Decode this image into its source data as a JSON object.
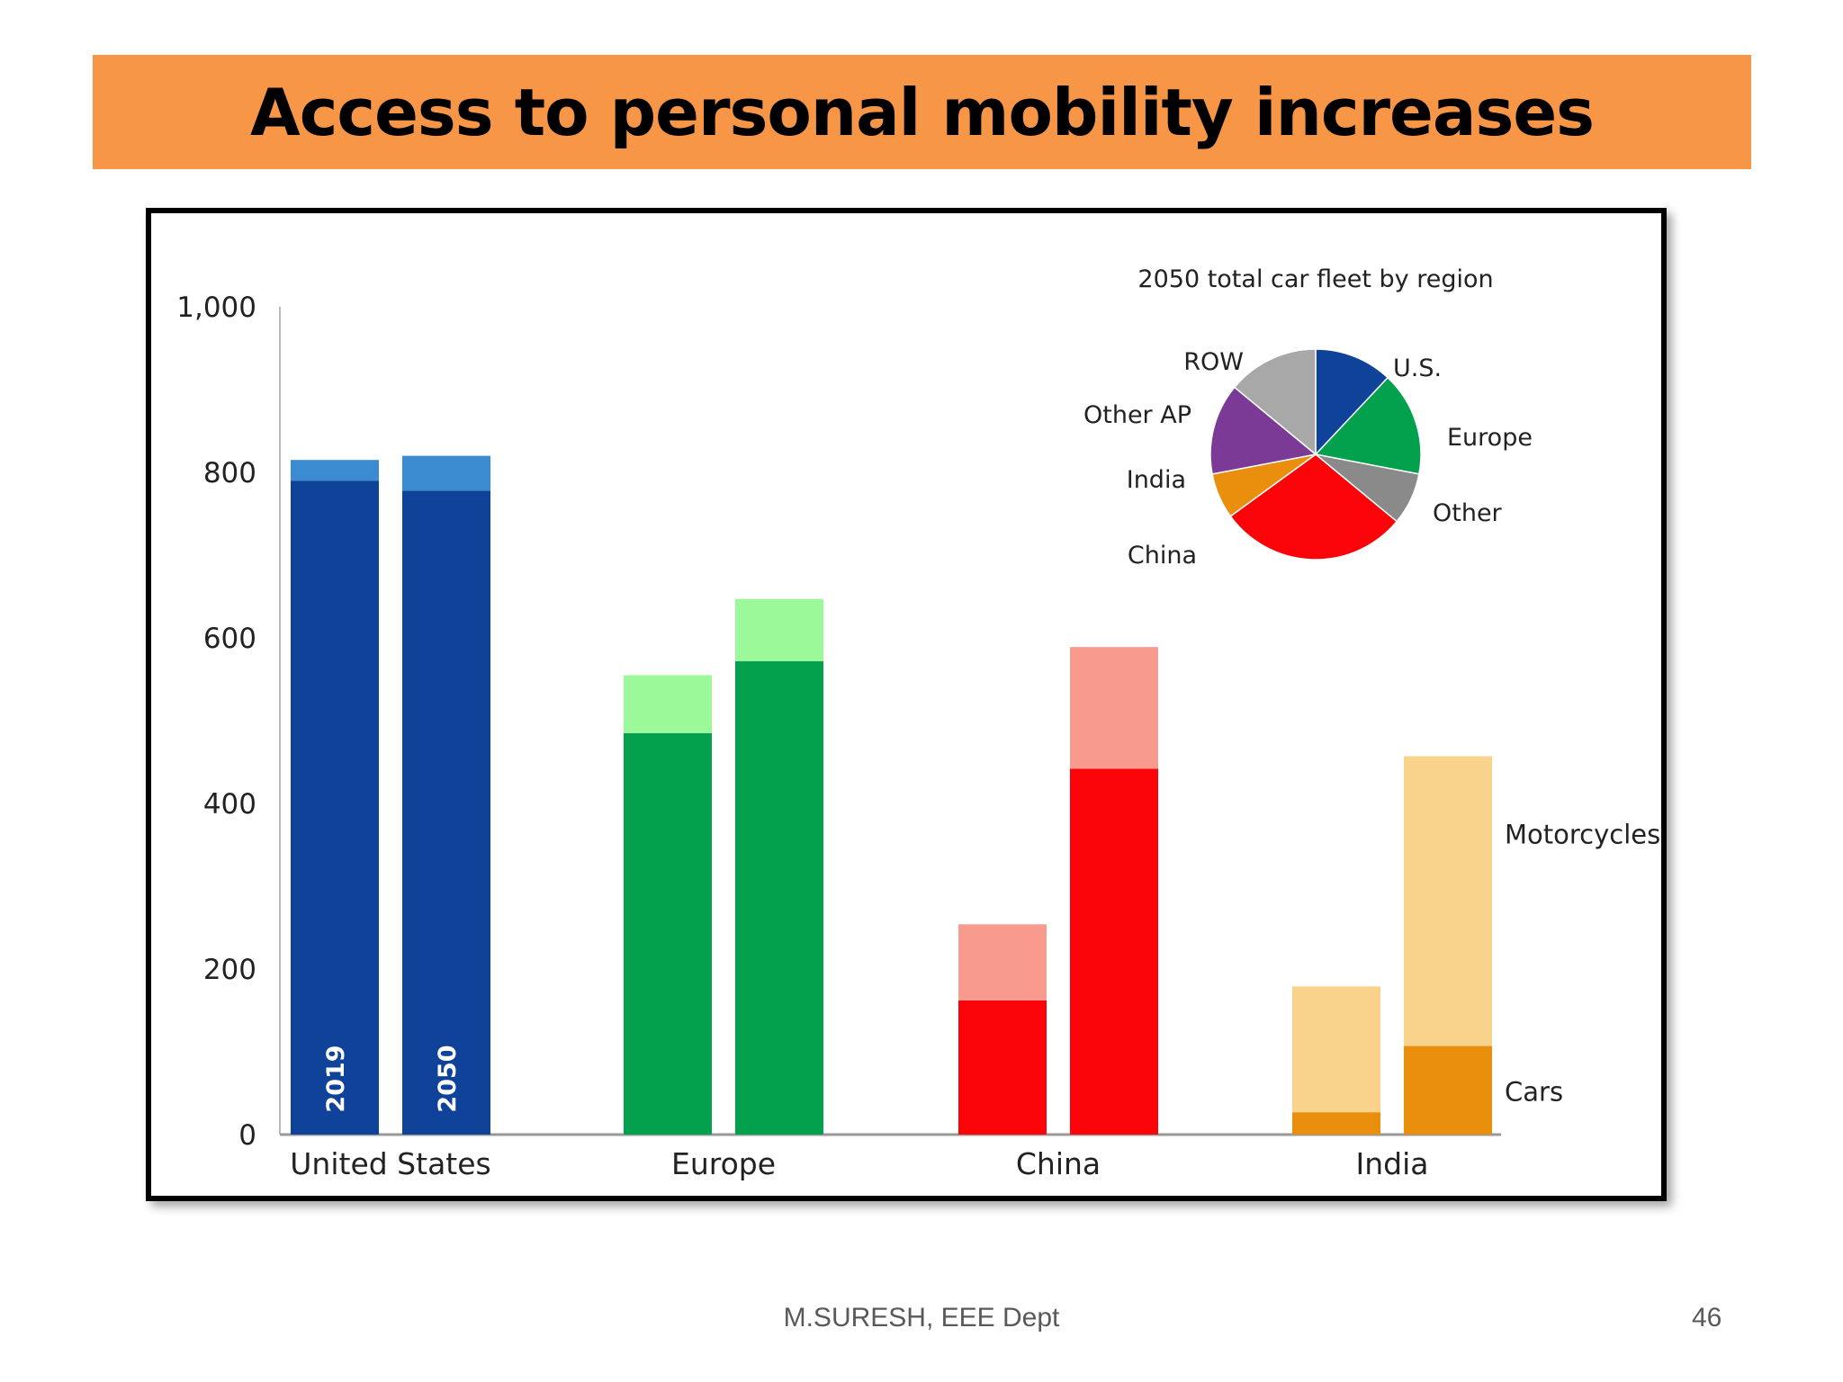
{
  "title": "Access to personal mobility increases",
  "footer": {
    "author": "M.SURESH, EEE Dept",
    "page": "46"
  },
  "chart_data": [
    {
      "type": "bar",
      "subtype": "stacked-grouped",
      "title": "",
      "ylim": [
        0,
        1000
      ],
      "yticks": [
        0,
        200,
        400,
        600,
        800,
        1000
      ],
      "ytick_labels": [
        "0",
        "200",
        "400",
        "600",
        "800",
        "1,000"
      ],
      "categories": [
        "United States",
        "Europe",
        "China",
        "India"
      ],
      "years": [
        "2019",
        "2050"
      ],
      "series": [
        {
          "name": "Cars",
          "label": "Cars",
          "values_2019": [
            790,
            485,
            162,
            27
          ],
          "values_2050": [
            778,
            572,
            442,
            107
          ]
        },
        {
          "name": "Motorcycles",
          "label": "Motorcycles",
          "values_2019": [
            25,
            70,
            92,
            152
          ],
          "values_2050": [
            42,
            75,
            147,
            350
          ]
        }
      ],
      "colors": {
        "United States": {
          "Cars": "#0f4299",
          "Motorcycles": "#3b8bd0"
        },
        "Europe": {
          "Cars": "#03a04d",
          "Motorcycles": "#9cf99a"
        },
        "China": {
          "Cars": "#fa0309",
          "Motorcycles": "#f99a8f"
        },
        "India": {
          "Cars": "#ea8e0e",
          "Motorcycles": "#f9d28c"
        }
      }
    },
    {
      "type": "pie",
      "title": "2050 total car fleet by region",
      "slices": [
        {
          "label": "U.S.",
          "value": 12,
          "color": "#0f4299"
        },
        {
          "label": "Europe",
          "value": 16,
          "color": "#03a04d"
        },
        {
          "label": "Other",
          "value": 8,
          "color": "#8a8a8a"
        },
        {
          "label": "China",
          "value": 29,
          "color": "#fa0309"
        },
        {
          "label": "India",
          "value": 7,
          "color": "#ea8e0e"
        },
        {
          "label": "Other AP",
          "value": 14,
          "color": "#7b3a96"
        },
        {
          "label": "ROW",
          "value": 14,
          "color": "#a8a8a8"
        }
      ]
    }
  ]
}
